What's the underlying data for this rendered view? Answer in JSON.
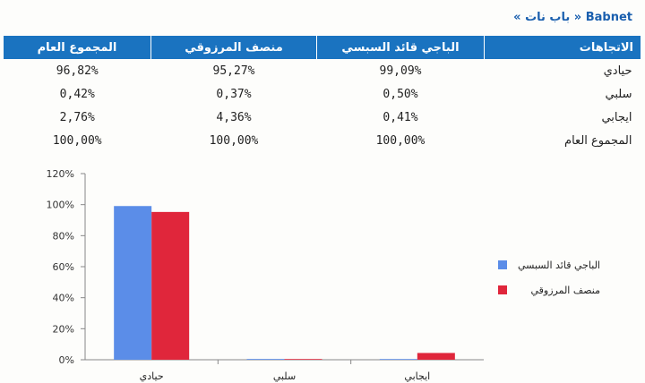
{
  "source": "« باب نات » Babnet",
  "table": {
    "headers": [
      "الاتجاهات",
      "الباجي قائد السبسي",
      "منصف المرزوقي",
      "المجموع العام"
    ],
    "rows": [
      {
        "label": "حيادي",
        "values": [
          "99,09%",
          "95,27%",
          "96,82%"
        ]
      },
      {
        "label": "سلبي",
        "values": [
          "0,50%",
          "0,37%",
          "0,42%"
        ]
      },
      {
        "label": "ايجابي",
        "values": [
          "0,41%",
          "4,36%",
          "2,76%"
        ]
      },
      {
        "label": "المجموع العام",
        "values": [
          "100,00%",
          "100,00%",
          "100,00%"
        ]
      }
    ]
  },
  "colors": {
    "header_bg": "#1a73c0",
    "series1": "#5b8de8",
    "series2": "#e0263b"
  },
  "chart_data": {
    "type": "bar",
    "categories": [
      "حيادي",
      "سلبي",
      "ايجابي"
    ],
    "series": [
      {
        "name": "الباجي قائد السبسي",
        "values": [
          99.09,
          0.5,
          0.41
        ]
      },
      {
        "name": "منصف المرزوقي",
        "values": [
          95.27,
          0.37,
          4.36
        ]
      }
    ],
    "y_ticks": [
      "0%",
      "20%",
      "40%",
      "60%",
      "80%",
      "100%",
      "120%"
    ],
    "ylim": [
      0,
      120
    ],
    "legend_position": "right"
  }
}
